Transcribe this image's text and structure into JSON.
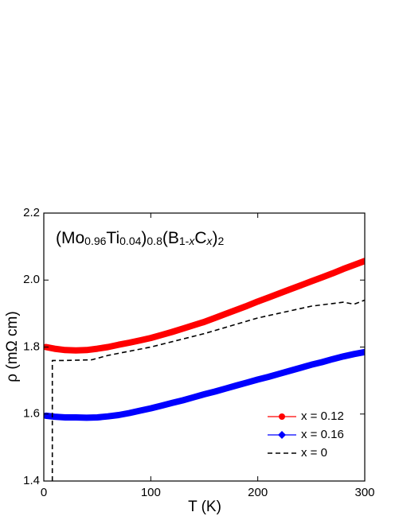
{
  "chart_data": {
    "type": "line",
    "annotation": [
      {
        "text": "(Mo"
      },
      {
        "text": "0.96",
        "sub": true
      },
      {
        "text": "Ti"
      },
      {
        "text": "0.04",
        "sub": true
      },
      {
        "text": ")"
      },
      {
        "text": "0.8",
        "sub": true
      },
      {
        "text": "(B"
      },
      {
        "text": "1-",
        "sub": true
      },
      {
        "text": "x",
        "sub": true,
        "italic": true
      },
      {
        "text": "C"
      },
      {
        "text": "x",
        "sub": true,
        "italic": true
      },
      {
        "text": ")"
      },
      {
        "text": "2",
        "sub": true
      }
    ],
    "xlabel": "T (K)",
    "ylabel": "ρ (mΩ cm)",
    "xlim": [
      0,
      300
    ],
    "ylim": [
      1.4,
      2.2
    ],
    "xticks": [
      0,
      100,
      200,
      300
    ],
    "yticks": [
      1.4,
      1.6,
      1.8,
      {
        "value": 2,
        "label": "2.0"
      },
      2.2
    ],
    "series": [
      {
        "name": "x = 0.12",
        "color": "#ff0000",
        "marker": "circle",
        "x": [
          2,
          10,
          20,
          30,
          40,
          50,
          60,
          70,
          80,
          90,
          100,
          110,
          120,
          130,
          140,
          150,
          160,
          170,
          180,
          190,
          200,
          210,
          220,
          230,
          240,
          250,
          260,
          270,
          280,
          290,
          300
        ],
        "values": [
          1.8,
          1.795,
          1.791,
          1.79,
          1.791,
          1.795,
          1.8,
          1.807,
          1.813,
          1.82,
          1.827,
          1.836,
          1.845,
          1.855,
          1.865,
          1.875,
          1.887,
          1.899,
          1.911,
          1.923,
          1.936,
          1.948,
          1.96,
          1.972,
          1.984,
          1.996,
          2.008,
          2.02,
          2.033,
          2.045,
          2.057
        ]
      },
      {
        "name": "x = 0.16",
        "color": "#0000ff",
        "marker": "diamond",
        "x": [
          2,
          10,
          20,
          30,
          40,
          50,
          60,
          70,
          80,
          90,
          100,
          110,
          120,
          130,
          140,
          150,
          160,
          170,
          180,
          190,
          200,
          210,
          220,
          230,
          240,
          250,
          260,
          270,
          280,
          290,
          300
        ],
        "values": [
          1.595,
          1.592,
          1.59,
          1.59,
          1.589,
          1.59,
          1.593,
          1.597,
          1.603,
          1.61,
          1.617,
          1.625,
          1.633,
          1.641,
          1.65,
          1.659,
          1.667,
          1.676,
          1.685,
          1.694,
          1.703,
          1.711,
          1.72,
          1.729,
          1.738,
          1.747,
          1.755,
          1.764,
          1.772,
          1.779,
          1.785
        ]
      },
      {
        "name": "x = 0",
        "color": "#000000",
        "dash": true,
        "x": [
          8,
          8,
          20,
          45,
          60,
          100,
          150,
          200,
          250,
          280,
          290,
          300
        ],
        "values": [
          1.4,
          1.76,
          1.76,
          1.762,
          1.775,
          1.8,
          1.84,
          1.887,
          1.922,
          1.934,
          1.928,
          1.94
        ]
      }
    ]
  }
}
